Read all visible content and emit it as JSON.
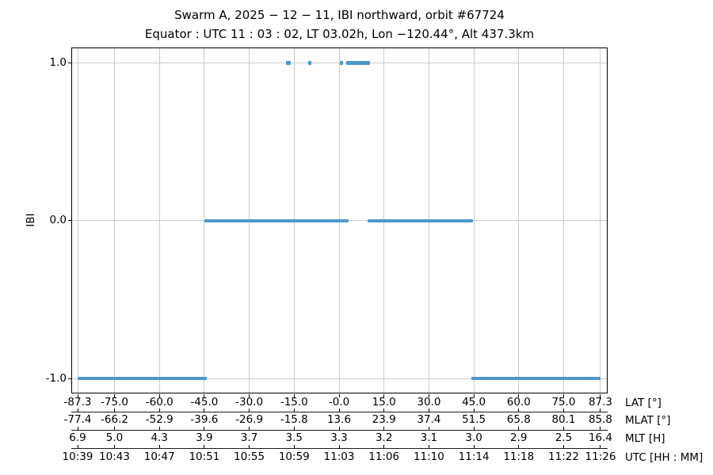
{
  "title": {
    "line1": "Swarm A,  2025 − 12 − 11,  IBI northward,  orbit #67724",
    "line2": "Equator :  UTC 11 : 03 : 02,  LT 03.02h,  Lon −120.44°,  Alt 437.3km"
  },
  "colors": {
    "line": "#4f97c9",
    "grid": "#cccccc",
    "axis": "#000000",
    "text": "#000000",
    "background": "#ffffff"
  },
  "chart_data": {
    "type": "line",
    "title": "Swarm A, 2025-12-11, IBI northward, orbit #67724",
    "subtitle": "Equator: UTC 11:03:02, LT 03.02h, Lon -120.44°, Alt 437.3km",
    "ylabel": "IBI",
    "grid": true,
    "legend": "none",
    "ylim": [
      -1.09,
      1.1
    ],
    "xlim_lat": [
      -89.4,
      89.4
    ],
    "yticks": [
      {
        "value": 1.0,
        "label": "1.0"
      },
      {
        "value": 0.0,
        "label": "0.0"
      },
      {
        "value": -1.0,
        "label": "-1.0"
      }
    ],
    "x_axes_rows": [
      {
        "name": "LAT [°]"
      },
      {
        "name": "MLAT [°]"
      },
      {
        "name": "MLT [H]"
      },
      {
        "name": "UTC [HH : MM]"
      }
    ],
    "ticks": [
      {
        "lat": -87.3,
        "labels": {
          "lat": "-87.3",
          "mlat": "-77.4",
          "mlt": "6.9",
          "utc": "10:39"
        }
      },
      {
        "lat": -75.0,
        "labels": {
          "lat": "-75.0",
          "mlat": "-66.2",
          "mlt": "5.0",
          "utc": "10:43"
        }
      },
      {
        "lat": -60.0,
        "labels": {
          "lat": "-60.0",
          "mlat": "-52.9",
          "mlt": "4.3",
          "utc": "10:47"
        }
      },
      {
        "lat": -45.0,
        "labels": {
          "lat": "-45.0",
          "mlat": "-39.6",
          "mlt": "3.9",
          "utc": "10:51"
        }
      },
      {
        "lat": -30.0,
        "labels": {
          "lat": "-30.0",
          "mlat": "-26.9",
          "mlt": "3.7",
          "utc": "10:55"
        }
      },
      {
        "lat": -15.0,
        "labels": {
          "lat": "-15.0",
          "mlat": "-15.8",
          "mlt": "3.5",
          "utc": "10:59"
        }
      },
      {
        "lat": 0.0,
        "labels": {
          "lat": "-0.0",
          "mlat": "13.6",
          "mlt": "3.3",
          "utc": "11:03"
        }
      },
      {
        "lat": 15.0,
        "labels": {
          "lat": "15.0",
          "mlat": "23.9",
          "mlt": "3.2",
          "utc": "11:06"
        }
      },
      {
        "lat": 30.0,
        "labels": {
          "lat": "30.0",
          "mlat": "37.4",
          "mlt": "3.1",
          "utc": "11:10"
        }
      },
      {
        "lat": 45.0,
        "labels": {
          "lat": "45.0",
          "mlat": "51.5",
          "mlt": "3.0",
          "utc": "11:14"
        }
      },
      {
        "lat": 60.0,
        "labels": {
          "lat": "60.0",
          "mlat": "65.8",
          "mlt": "2.9",
          "utc": "11:18"
        }
      },
      {
        "lat": 75.0,
        "labels": {
          "lat": "75.0",
          "mlat": "80.1",
          "mlt": "2.5",
          "utc": "11:22"
        }
      },
      {
        "lat": 87.3,
        "labels": {
          "lat": "87.3",
          "mlat": "85.8",
          "mlt": "16.4",
          "utc": "11:26"
        }
      }
    ],
    "segments": [
      {
        "y": -1,
        "lat": [
          -87.3,
          -44.3
        ]
      },
      {
        "y": 0,
        "lat": [
          -45.0,
          3.2
        ]
      },
      {
        "y": 0,
        "lat": [
          9.5,
          44.7
        ]
      },
      {
        "y": -1,
        "lat": [
          44.2,
          87.3
        ]
      },
      {
        "y": 1,
        "lat": [
          -17.7,
          -16.1
        ]
      },
      {
        "y": 1,
        "lat": [
          -10.3,
          -9.3
        ]
      },
      {
        "y": 1,
        "lat": [
          0.3,
          1.3
        ]
      },
      {
        "y": 1,
        "lat": [
          2.4,
          10.3
        ]
      }
    ]
  }
}
